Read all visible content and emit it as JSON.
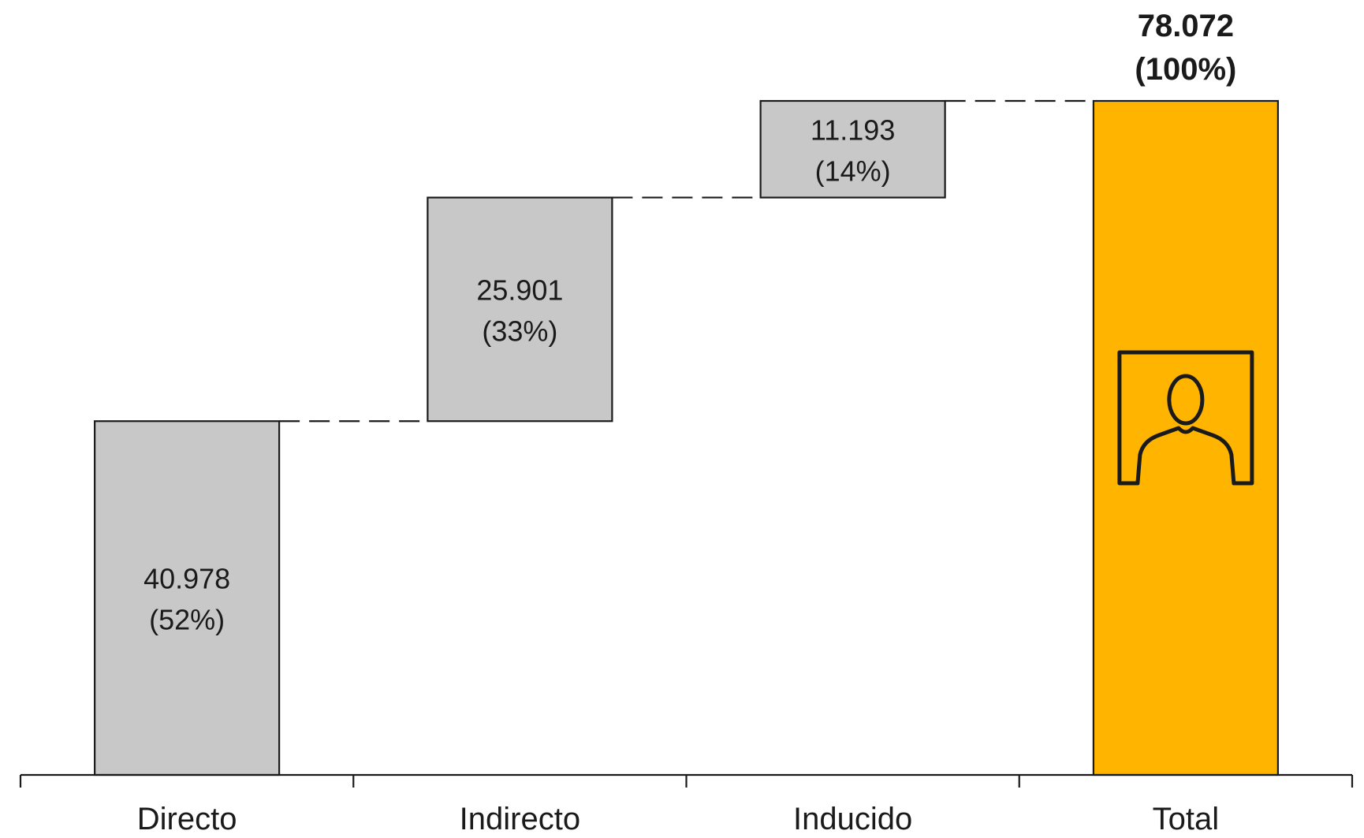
{
  "chart_data": {
    "type": "bar",
    "subtype": "waterfall",
    "title": "",
    "xlabel": "",
    "ylabel": "",
    "categories": [
      "Directo",
      "Indirecto",
      "Inducido",
      "Total"
    ],
    "values": [
      40978,
      25901,
      11193,
      78072
    ],
    "value_labels": [
      "40.978",
      "25.901",
      "11.193",
      "78.072"
    ],
    "percent_labels": [
      "(52%)",
      "(33%)",
      "(14%)",
      "(100%)"
    ],
    "is_total": [
      false,
      false,
      false,
      true
    ],
    "ylim": [
      0,
      78072
    ],
    "grid": false,
    "legend": "none",
    "connectors": "dashed",
    "colors": {
      "increment": "#c8c8c8",
      "total": "#ffb500",
      "outline": "#1a1a1a",
      "text": "#1a1a1a"
    },
    "total_icon": "person-icon"
  }
}
